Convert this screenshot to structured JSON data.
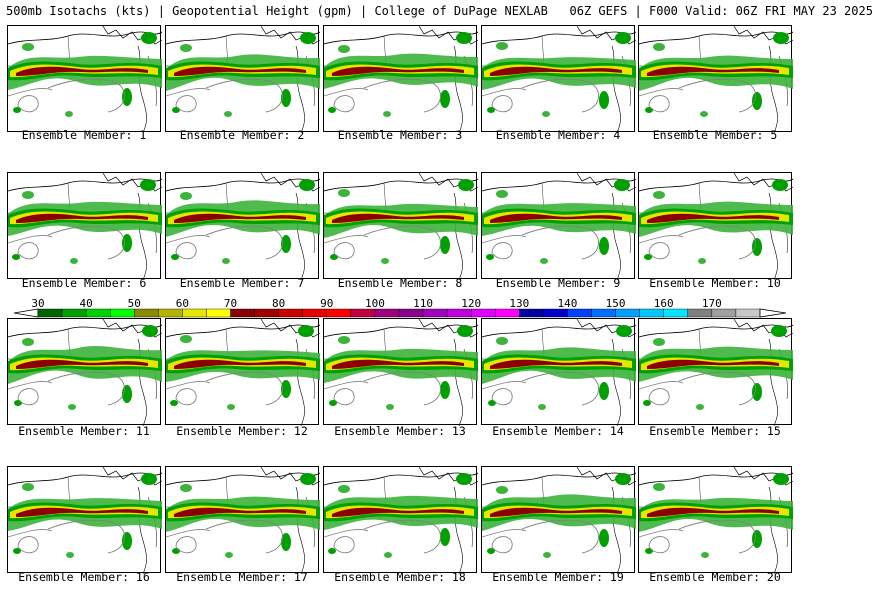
{
  "header": {
    "title": "500mb Isotachs (kts) | Geopotential Height (gpm) | College of DuPage NEXLAB   06Z GEFS | F000 Valid: 06Z FRI MAY 23 2025"
  },
  "panels": [
    {
      "caption": "Ensemble Member: 1"
    },
    {
      "caption": "Ensemble Member: 2"
    },
    {
      "caption": "Ensemble Member: 3"
    },
    {
      "caption": "Ensemble Member: 4"
    },
    {
      "caption": "Ensemble Member: 5"
    },
    {
      "caption": "Ensemble Member: 6"
    },
    {
      "caption": "Ensemble Member: 7"
    },
    {
      "caption": "Ensemble Member: 8"
    },
    {
      "caption": "Ensemble Member: 9"
    },
    {
      "caption": "Ensemble Member: 10"
    },
    {
      "caption": "Ensemble Member: 11"
    },
    {
      "caption": "Ensemble Member: 12"
    },
    {
      "caption": "Ensemble Member: 13"
    },
    {
      "caption": "Ensemble Member: 14"
    },
    {
      "caption": "Ensemble Member: 15"
    },
    {
      "caption": "Ensemble Member: 16"
    },
    {
      "caption": "Ensemble Member: 17"
    },
    {
      "caption": "Ensemble Member: 18"
    },
    {
      "caption": "Ensemble Member: 19"
    },
    {
      "caption": "Ensemble Member: 20"
    }
  ],
  "colorbar": {
    "labels": [
      "30",
      "40",
      "50",
      "60",
      "70",
      "80",
      "90",
      "100",
      "110",
      "120",
      "130",
      "140",
      "150",
      "160",
      "170"
    ],
    "colors": [
      "#006400",
      "#00a000",
      "#00d200",
      "#00ff00",
      "#8a8a00",
      "#b4b400",
      "#e6e600",
      "#ffff00",
      "#8b0000",
      "#a00000",
      "#c80000",
      "#e60000",
      "#ff0000",
      "#c00040",
      "#a00080",
      "#8b008b",
      "#a000c0",
      "#c000e0",
      "#e000ff",
      "#ff00ff",
      "#0000a0",
      "#0000c8",
      "#0040ff",
      "#0070ff",
      "#00a0ff",
      "#00c8ff",
      "#00e6ff",
      "#808080",
      "#a0a0a0",
      "#c8c8c8"
    ],
    "jet_colors": {
      "light_green": "#3cb43c",
      "green": "#00a000",
      "yellow": "#e6e600",
      "maroon": "#8b0000",
      "gray_contour": "#808080"
    }
  }
}
